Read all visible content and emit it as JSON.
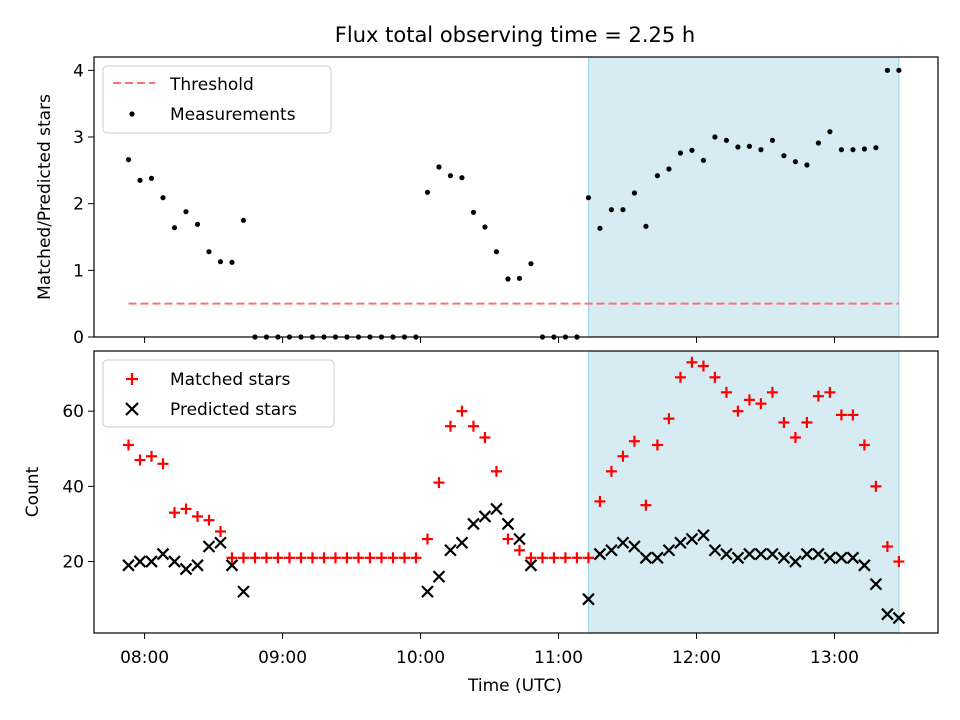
{
  "title": "Flux total observing time = 2.25 h",
  "chart_data": [
    {
      "type": "scatter",
      "ylabel": "Matched/Predicted stars",
      "ylim": [
        0,
        4.2
      ],
      "yticks": [
        0,
        1,
        2,
        3,
        4
      ],
      "xlim": [
        "07:38",
        "13:45"
      ],
      "shaded_span": [
        "11:13",
        "13:28"
      ],
      "legend": {
        "position": "top-left",
        "entries": [
          "Threshold",
          "Measurements"
        ]
      },
      "threshold": {
        "name": "Threshold",
        "value": 0.5,
        "color": "#ff7070",
        "x": [
          "07:53",
          "13:28"
        ]
      },
      "series": [
        {
          "name": "Measurements",
          "color": "#000000",
          "points": [
            [
              "07:53",
              2.66
            ],
            [
              "07:58",
              2.35
            ],
            [
              "08:03",
              2.38
            ],
            [
              "08:08",
              2.09
            ],
            [
              "08:13",
              1.64
            ],
            [
              "08:18",
              1.88
            ],
            [
              "08:23",
              1.69
            ],
            [
              "08:28",
              1.28
            ],
            [
              "08:33",
              1.13
            ],
            [
              "08:38",
              1.12
            ],
            [
              "08:43",
              1.75
            ],
            [
              "08:48",
              0
            ],
            [
              "08:53",
              0
            ],
            [
              "08:58",
              0
            ],
            [
              "09:03",
              0
            ],
            [
              "09:08",
              0
            ],
            [
              "09:13",
              0
            ],
            [
              "09:18",
              0
            ],
            [
              "09:23",
              0
            ],
            [
              "09:28",
              0
            ],
            [
              "09:33",
              0
            ],
            [
              "09:38",
              0
            ],
            [
              "09:43",
              0
            ],
            [
              "09:48",
              0
            ],
            [
              "09:53",
              0
            ],
            [
              "09:58",
              0
            ],
            [
              "10:03",
              2.17
            ],
            [
              "10:08",
              2.55
            ],
            [
              "10:13",
              2.42
            ],
            [
              "10:18",
              2.39
            ],
            [
              "10:23",
              1.87
            ],
            [
              "10:28",
              1.65
            ],
            [
              "10:33",
              1.28
            ],
            [
              "10:38",
              0.87
            ],
            [
              "10:43",
              0.88
            ],
            [
              "10:48",
              1.1
            ],
            [
              "10:53",
              0
            ],
            [
              "10:58",
              0
            ],
            [
              "11:03",
              0
            ],
            [
              "11:08",
              0
            ],
            [
              "11:13",
              2.09
            ],
            [
              "11:18",
              1.63
            ],
            [
              "11:23",
              1.91
            ],
            [
              "11:28",
              1.91
            ],
            [
              "11:33",
              2.16
            ],
            [
              "11:38",
              1.66
            ],
            [
              "11:43",
              2.42
            ],
            [
              "11:48",
              2.52
            ],
            [
              "11:53",
              2.76
            ],
            [
              "11:58",
              2.8
            ],
            [
              "12:03",
              2.65
            ],
            [
              "12:08",
              3.0
            ],
            [
              "12:13",
              2.95
            ],
            [
              "12:18",
              2.85
            ],
            [
              "12:23",
              2.86
            ],
            [
              "12:28",
              2.81
            ],
            [
              "12:33",
              2.95
            ],
            [
              "12:38",
              2.72
            ],
            [
              "12:43",
              2.63
            ],
            [
              "12:48",
              2.58
            ],
            [
              "12:53",
              2.91
            ],
            [
              "12:58",
              3.08
            ],
            [
              "13:03",
              2.81
            ],
            [
              "13:08",
              2.81
            ],
            [
              "13:13",
              2.82
            ],
            [
              "13:18",
              2.84
            ],
            [
              "13:23",
              4.0
            ],
            [
              "13:28",
              4.0
            ]
          ]
        }
      ]
    },
    {
      "type": "scatter",
      "xlabel": "Time (UTC)",
      "ylabel": "Count",
      "ylim": [
        1,
        76
      ],
      "yticks": [
        20,
        40,
        60
      ],
      "xlim": [
        "07:38",
        "13:45"
      ],
      "xticks": [
        "08:00",
        "09:00",
        "10:00",
        "11:00",
        "12:00",
        "13:00"
      ],
      "shaded_span": [
        "11:13",
        "13:28"
      ],
      "legend": {
        "position": "top-left",
        "entries": [
          "Matched stars",
          "Predicted stars"
        ]
      },
      "series": [
        {
          "name": "Matched stars",
          "marker": "plus",
          "color": "#ff0000",
          "points": [
            [
              "07:53",
              51
            ],
            [
              "07:58",
              47
            ],
            [
              "08:03",
              48
            ],
            [
              "08:08",
              46
            ],
            [
              "08:13",
              33
            ],
            [
              "08:18",
              34
            ],
            [
              "08:23",
              32
            ],
            [
              "08:28",
              31
            ],
            [
              "08:33",
              28
            ],
            [
              "08:38",
              21
            ],
            [
              "08:43",
              21
            ],
            [
              "08:48",
              21
            ],
            [
              "08:53",
              21
            ],
            [
              "08:58",
              21
            ],
            [
              "09:03",
              21
            ],
            [
              "09:08",
              21
            ],
            [
              "09:13",
              21
            ],
            [
              "09:18",
              21
            ],
            [
              "09:23",
              21
            ],
            [
              "09:28",
              21
            ],
            [
              "09:33",
              21
            ],
            [
              "09:38",
              21
            ],
            [
              "09:43",
              21
            ],
            [
              "09:48",
              21
            ],
            [
              "09:53",
              21
            ],
            [
              "09:58",
              21
            ],
            [
              "10:03",
              26
            ],
            [
              "10:08",
              41
            ],
            [
              "10:13",
              56
            ],
            [
              "10:18",
              60
            ],
            [
              "10:23",
              56
            ],
            [
              "10:28",
              53
            ],
            [
              "10:33",
              44
            ],
            [
              "10:38",
              26
            ],
            [
              "10:43",
              23
            ],
            [
              "10:48",
              21
            ],
            [
              "10:53",
              21
            ],
            [
              "10:58",
              21
            ],
            [
              "11:03",
              21
            ],
            [
              "11:08",
              21
            ],
            [
              "11:13",
              21
            ],
            [
              "11:18",
              36
            ],
            [
              "11:23",
              44
            ],
            [
              "11:28",
              48
            ],
            [
              "11:33",
              52
            ],
            [
              "11:38",
              35
            ],
            [
              "11:43",
              51
            ],
            [
              "11:48",
              58
            ],
            [
              "11:53",
              69
            ],
            [
              "11:58",
              73
            ],
            [
              "12:03",
              72
            ],
            [
              "12:08",
              69
            ],
            [
              "12:13",
              65
            ],
            [
              "12:18",
              60
            ],
            [
              "12:23",
              63
            ],
            [
              "12:28",
              62
            ],
            [
              "12:33",
              65
            ],
            [
              "12:38",
              57
            ],
            [
              "12:43",
              53
            ],
            [
              "12:48",
              57
            ],
            [
              "12:53",
              64
            ],
            [
              "12:58",
              65
            ],
            [
              "13:03",
              59
            ],
            [
              "13:08",
              59
            ],
            [
              "13:13",
              51
            ],
            [
              "13:18",
              40
            ],
            [
              "13:23",
              24
            ],
            [
              "13:28",
              20
            ]
          ]
        },
        {
          "name": "Predicted stars",
          "marker": "x",
          "color": "#000000",
          "points": [
            [
              "07:53",
              19
            ],
            [
              "07:58",
              20
            ],
            [
              "08:03",
              20
            ],
            [
              "08:08",
              22
            ],
            [
              "08:13",
              20
            ],
            [
              "08:18",
              18
            ],
            [
              "08:23",
              19
            ],
            [
              "08:28",
              24
            ],
            [
              "08:33",
              25
            ],
            [
              "08:38",
              19
            ],
            [
              "08:43",
              12
            ],
            [
              "10:03",
              12
            ],
            [
              "10:08",
              16
            ],
            [
              "10:13",
              23
            ],
            [
              "10:18",
              25
            ],
            [
              "10:23",
              30
            ],
            [
              "10:28",
              32
            ],
            [
              "10:33",
              34
            ],
            [
              "10:38",
              30
            ],
            [
              "10:43",
              26
            ],
            [
              "10:48",
              19
            ],
            [
              "11:13",
              10
            ],
            [
              "11:18",
              22
            ],
            [
              "11:23",
              23
            ],
            [
              "11:28",
              25
            ],
            [
              "11:33",
              24
            ],
            [
              "11:38",
              21
            ],
            [
              "11:43",
              21
            ],
            [
              "11:48",
              23
            ],
            [
              "11:53",
              25
            ],
            [
              "11:58",
              26
            ],
            [
              "12:03",
              27
            ],
            [
              "12:08",
              23
            ],
            [
              "12:13",
              22
            ],
            [
              "12:18",
              21
            ],
            [
              "12:23",
              22
            ],
            [
              "12:28",
              22
            ],
            [
              "12:33",
              22
            ],
            [
              "12:38",
              21
            ],
            [
              "12:43",
              20
            ],
            [
              "12:48",
              22
            ],
            [
              "12:53",
              22
            ],
            [
              "12:58",
              21
            ],
            [
              "13:03",
              21
            ],
            [
              "13:08",
              21
            ],
            [
              "13:13",
              19
            ],
            [
              "13:18",
              14
            ],
            [
              "13:23",
              6
            ],
            [
              "13:28",
              5
            ]
          ]
        }
      ]
    }
  ]
}
